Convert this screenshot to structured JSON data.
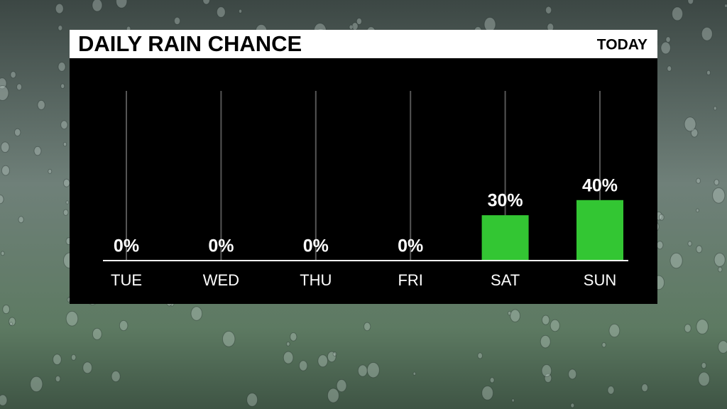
{
  "chart_data": {
    "type": "bar",
    "title": "DAILY RAIN CHANCE",
    "subtitle": "TODAY",
    "categories": [
      "TUE",
      "WED",
      "THU",
      "FRI",
      "SAT",
      "SUN"
    ],
    "values": [
      0,
      0,
      0,
      0,
      30,
      40
    ],
    "value_labels": [
      "0%",
      "0%",
      "0%",
      "0%",
      "30%",
      "40%"
    ],
    "color": "#33c633"
  }
}
